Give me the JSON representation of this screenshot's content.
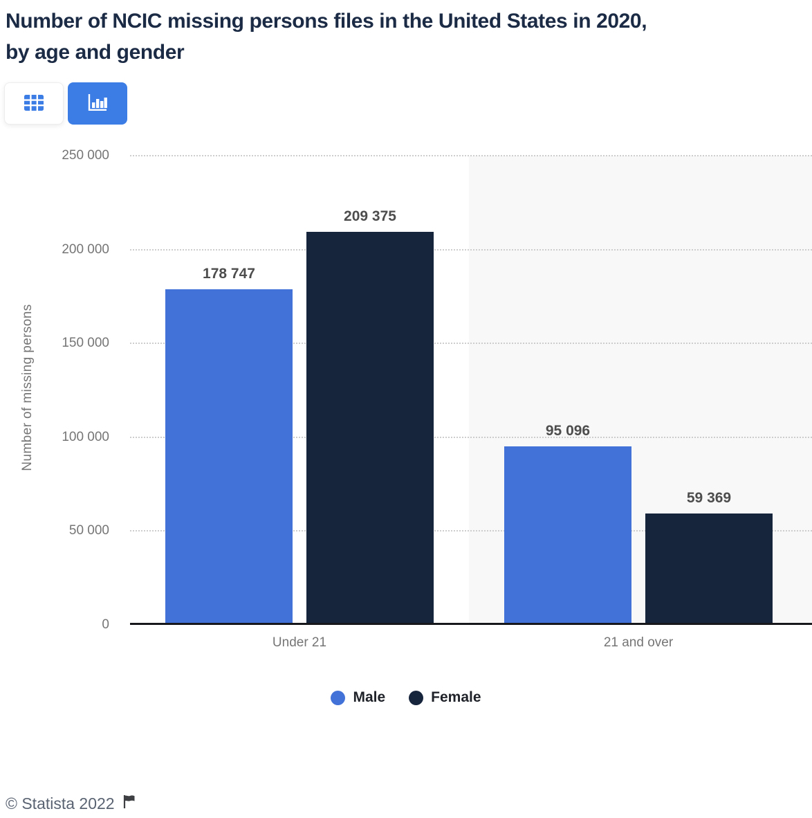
{
  "title": {
    "lines": [
      "Number of NCIC missing persons files in the United States in 2020,",
      "by age and gender"
    ]
  },
  "toolbar": {
    "buttons": [
      {
        "id": "table-view",
        "icon": "table-grid-icon",
        "active": false
      },
      {
        "id": "chart-view",
        "icon": "bar-chart-icon",
        "active": true
      }
    ]
  },
  "chart_data": {
    "type": "bar",
    "categories": [
      "Under 21",
      "21 and over"
    ],
    "series": [
      {
        "name": "Male",
        "color": "#4272d8",
        "values": [
          178747,
          95096
        ]
      },
      {
        "name": "Female",
        "color": "#17253c",
        "values": [
          209375,
          59369
        ]
      }
    ],
    "ylabel": "Number of missing persons",
    "xlabel": "",
    "ylim": [
      0,
      250000
    ],
    "yticks": [
      0,
      50000,
      100000,
      150000,
      200000,
      250000
    ],
    "grid": "horizontal-dotted",
    "legend_position": "bottom",
    "data_labels": true,
    "highlighted_category_index": 1,
    "number_format": "space-thousands"
  },
  "footer": {
    "copyright": "© Statista 2022",
    "flag_icon": "flag-icon"
  },
  "colors": {
    "accent_blue": "#3b7de5",
    "male_bar": "#4272d8",
    "female_bar": "#17253c",
    "title_text": "#1c2b45",
    "highlight_band": "#f8f8f9",
    "gridline": "#cdcdcd",
    "axis_line": "#16181c",
    "tick_text": "#757575",
    "value_label_text": "#4d4d4d"
  }
}
